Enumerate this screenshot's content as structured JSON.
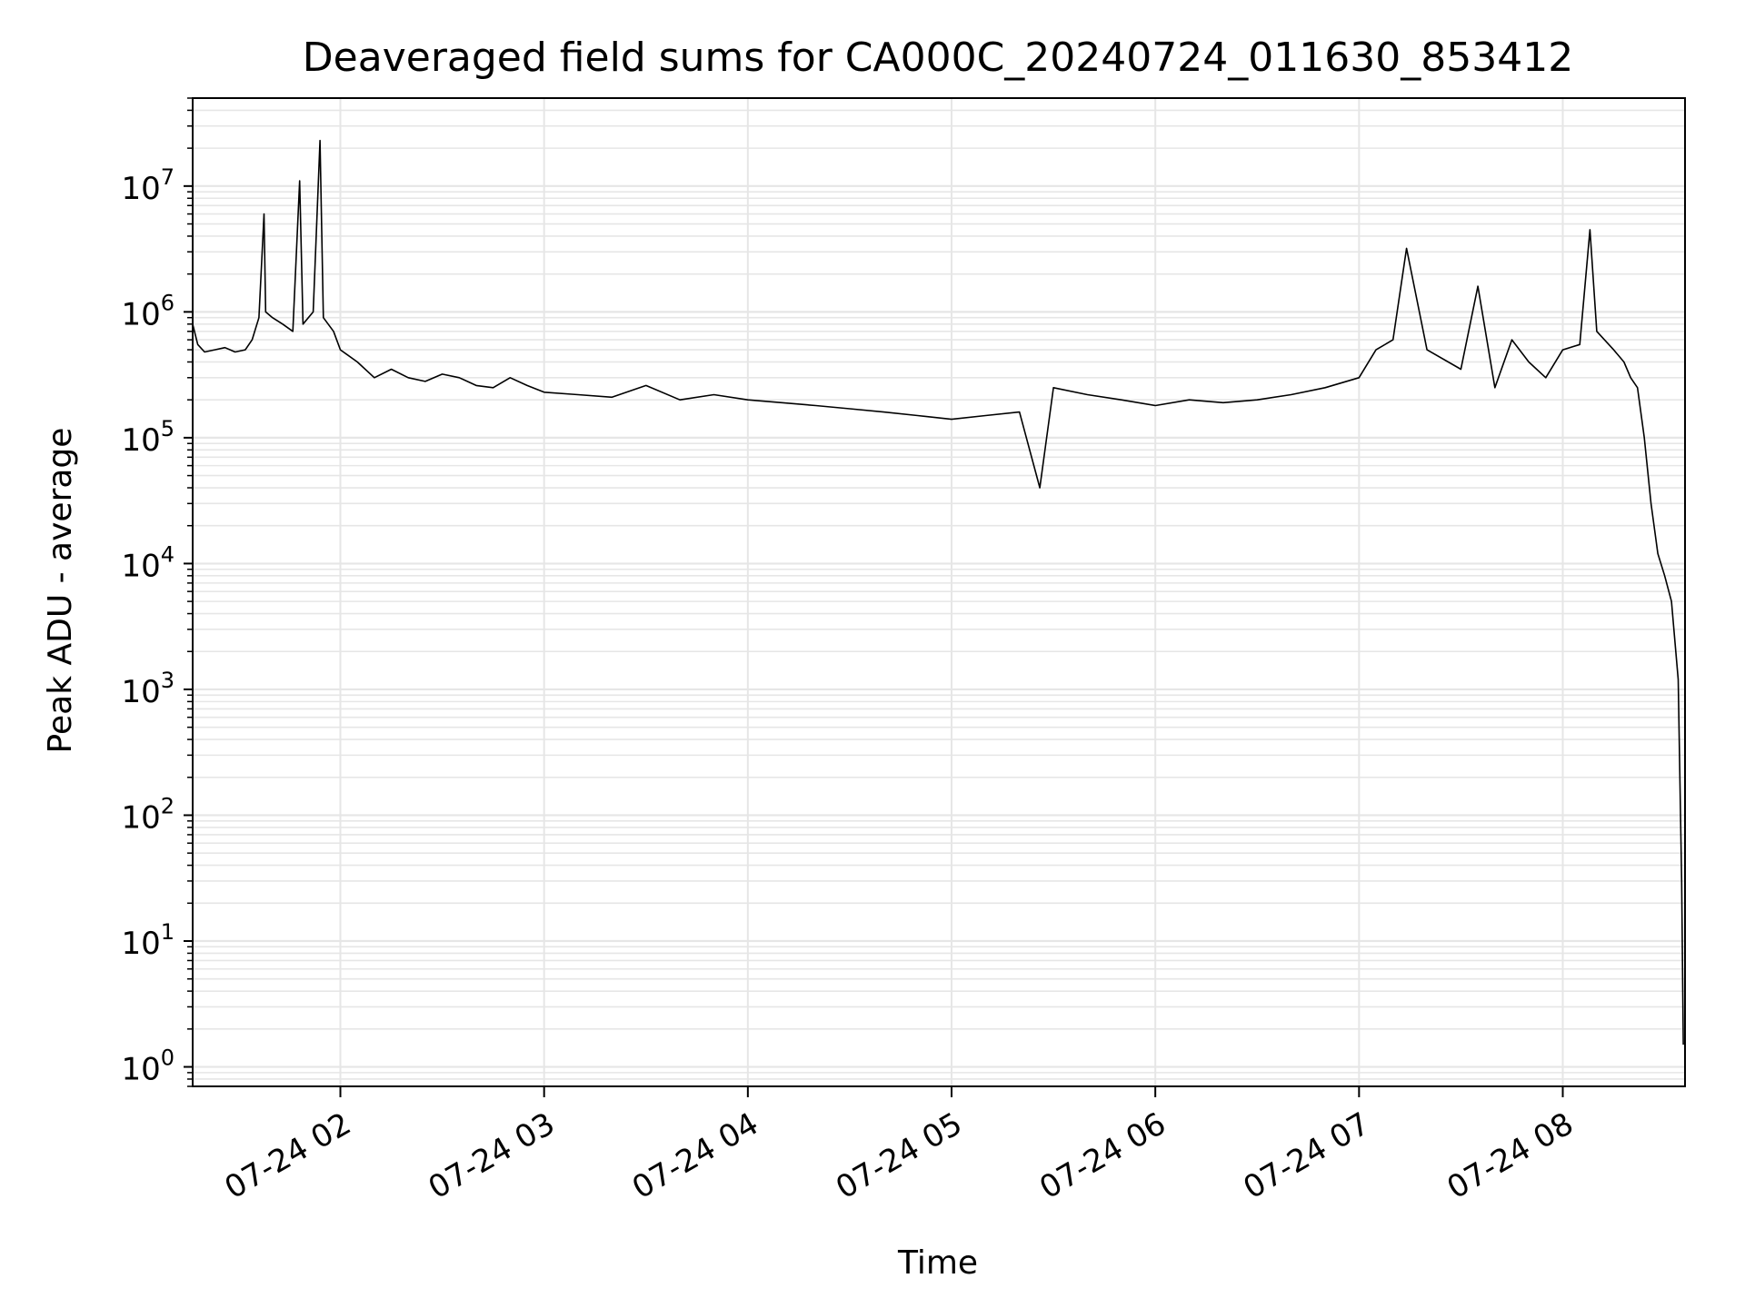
{
  "chart_data": {
    "type": "line",
    "title": "Deaveraged field sums for CA000C_20240724_011630_853412",
    "xlabel": "Time",
    "ylabel": "Peak ADU - average",
    "yscale": "log",
    "ylim": [
      0.7,
      50000000
    ],
    "xlim": [
      "2024-07-24 01:16:30",
      "2024-07-24 08:36:00"
    ],
    "xticks": [
      "2024-07-24 02:00",
      "2024-07-24 03:00",
      "2024-07-24 04:00",
      "2024-07-24 05:00",
      "2024-07-24 06:00",
      "2024-07-24 07:00",
      "2024-07-24 08:00"
    ],
    "xtick_labels": [
      "07-24 02",
      "07-24 03",
      "07-24 04",
      "07-24 05",
      "07-24 06",
      "07-24 07",
      "07-24 08"
    ],
    "ytick_labels": [
      {
        "base": "10",
        "exp": "0",
        "value": 1
      },
      {
        "base": "10",
        "exp": "1",
        "value": 10
      },
      {
        "base": "10",
        "exp": "2",
        "value": 100
      },
      {
        "base": "10",
        "exp": "3",
        "value": 1000
      },
      {
        "base": "10",
        "exp": "4",
        "value": 10000
      },
      {
        "base": "10",
        "exp": "5",
        "value": 100000
      },
      {
        "base": "10",
        "exp": "6",
        "value": 1000000
      },
      {
        "base": "10",
        "exp": "7",
        "value": 10000000
      }
    ],
    "grid": true,
    "grid_color": "#e6e6e6",
    "line_color": "#000000",
    "series": [
      {
        "name": "",
        "x": [
          "2024-07-24 01:16:30",
          "2024-07-24 01:18:00",
          "2024-07-24 01:20:00",
          "2024-07-24 01:23:00",
          "2024-07-24 01:26:00",
          "2024-07-24 01:29:00",
          "2024-07-24 01:32:00",
          "2024-07-24 01:34:00",
          "2024-07-24 01:36:00",
          "2024-07-24 01:37:30",
          "2024-07-24 01:38:00",
          "2024-07-24 01:40:00",
          "2024-07-24 01:43:00",
          "2024-07-24 01:46:00",
          "2024-07-24 01:48:00",
          "2024-07-24 01:49:00",
          "2024-07-24 01:52:00",
          "2024-07-24 01:54:00",
          "2024-07-24 01:55:00",
          "2024-07-24 01:58:00",
          "2024-07-24 02:00:00",
          "2024-07-24 02:05:00",
          "2024-07-24 02:10:00",
          "2024-07-24 02:15:00",
          "2024-07-24 02:20:00",
          "2024-07-24 02:25:00",
          "2024-07-24 02:30:00",
          "2024-07-24 02:35:00",
          "2024-07-24 02:40:00",
          "2024-07-24 02:45:00",
          "2024-07-24 02:50:00",
          "2024-07-24 02:55:00",
          "2024-07-24 03:00:00",
          "2024-07-24 03:10:00",
          "2024-07-24 03:20:00",
          "2024-07-24 03:30:00",
          "2024-07-24 03:40:00",
          "2024-07-24 03:50:00",
          "2024-07-24 04:00:00",
          "2024-07-24 04:10:00",
          "2024-07-24 04:20:00",
          "2024-07-24 04:30:00",
          "2024-07-24 04:40:00",
          "2024-07-24 04:50:00",
          "2024-07-24 05:00:00",
          "2024-07-24 05:10:00",
          "2024-07-24 05:20:00",
          "2024-07-24 05:26:00",
          "2024-07-24 05:30:00",
          "2024-07-24 05:40:00",
          "2024-07-24 05:50:00",
          "2024-07-24 06:00:00",
          "2024-07-24 06:10:00",
          "2024-07-24 06:20:00",
          "2024-07-24 06:30:00",
          "2024-07-24 06:40:00",
          "2024-07-24 06:50:00",
          "2024-07-24 07:00:00",
          "2024-07-24 07:05:00",
          "2024-07-24 07:10:00",
          "2024-07-24 07:14:00",
          "2024-07-24 07:20:00",
          "2024-07-24 07:30:00",
          "2024-07-24 07:35:00",
          "2024-07-24 07:40:00",
          "2024-07-24 07:45:00",
          "2024-07-24 07:50:00",
          "2024-07-24 07:55:00",
          "2024-07-24 08:00:00",
          "2024-07-24 08:05:00",
          "2024-07-24 08:08:00",
          "2024-07-24 08:10:00",
          "2024-07-24 08:15:00",
          "2024-07-24 08:18:00",
          "2024-07-24 08:20:00",
          "2024-07-24 08:22:00",
          "2024-07-24 08:24:00",
          "2024-07-24 08:26:00",
          "2024-07-24 08:28:00",
          "2024-07-24 08:30:00",
          "2024-07-24 08:32:00",
          "2024-07-24 08:34:00",
          "2024-07-24 08:35:00",
          "2024-07-24 08:35:30"
        ],
        "y": [
          800000,
          550000,
          480000,
          500000,
          520000,
          480000,
          500000,
          600000,
          900000,
          6000000,
          1000000,
          900000,
          800000,
          700000,
          11000000,
          800000,
          1000000,
          23000000,
          900000,
          700000,
          500000,
          400000,
          300000,
          350000,
          300000,
          280000,
          320000,
          300000,
          260000,
          250000,
          300000,
          260000,
          230000,
          220000,
          210000,
          260000,
          200000,
          220000,
          200000,
          190000,
          180000,
          170000,
          160000,
          150000,
          140000,
          150000,
          160000,
          40000,
          250000,
          220000,
          200000,
          180000,
          200000,
          190000,
          200000,
          220000,
          250000,
          300000,
          500000,
          600000,
          3200000,
          500000,
          350000,
          1600000,
          250000,
          600000,
          400000,
          300000,
          500000,
          550000,
          4500000,
          700000,
          500000,
          400000,
          300000,
          250000,
          100000,
          30000,
          12000,
          8000,
          5000,
          1200,
          30,
          1.5
        ]
      }
    ]
  }
}
